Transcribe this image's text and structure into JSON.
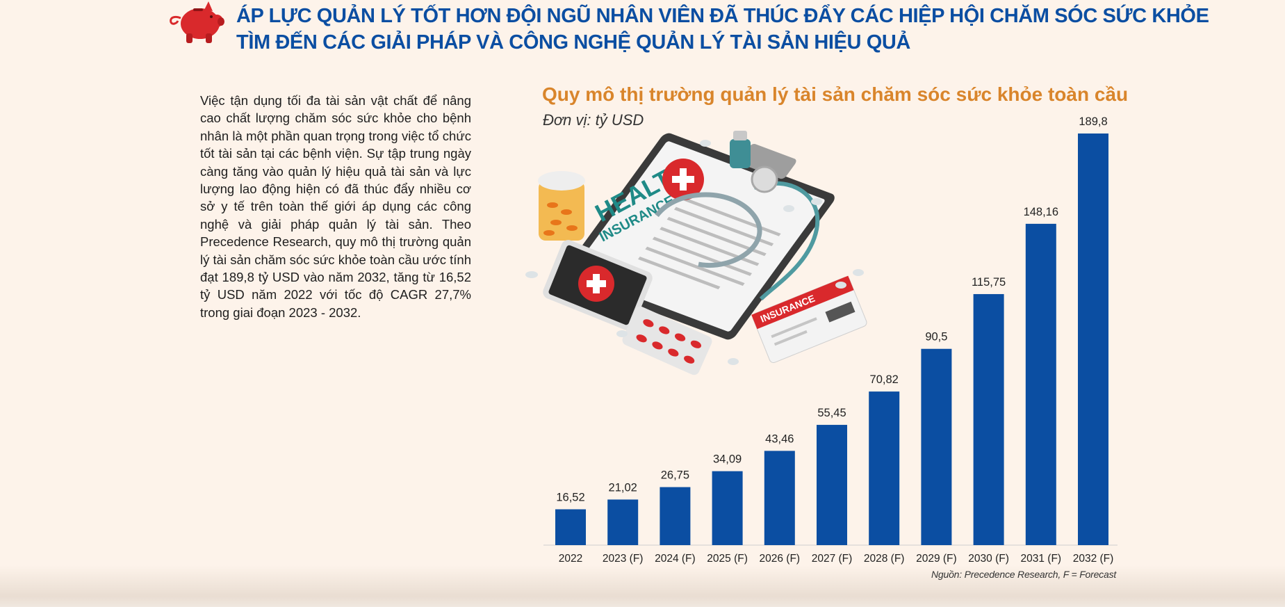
{
  "headline": {
    "line1": "ÁP LỰC QUẢN LÝ TỐT HƠN ĐỘI NGŨ NHÂN VIÊN ĐÃ THÚC ĐẨY CÁC HIỆP HỘI CHĂM SÓC SỨC KHỎE",
    "line2": "TÌM ĐẾN CÁC GIẢI PHÁP VÀ CÔNG NGHỆ QUẢN LÝ TÀI SẢN HIỆU QUẢ"
  },
  "article": {
    "body": "Việc tận dụng tối đa tài sản vật chất để nâng cao chất lượng chăm sóc sức khỏe cho bệnh nhân là một phần quan trọng trong việc tổ chức tốt tài sản tại các bệnh viện. Sự tập trung ngày càng tăng vào quản lý hiệu quả tài sản và lực lượng lao động hiện có đã thúc đẩy nhiều cơ sở y tế trên toàn thế giới áp dụng các công nghệ và giải pháp quản lý tài sản. Theo Precedence Research, quy mô thị trường quản lý tài sản chăm sóc sức khỏe toàn cầu ước tính đạt 189,8 tỷ USD vào năm 2032, tăng từ 16,52 tỷ USD năm 2022 với tốc độ CAGR 27,7% trong giai đoạn 2023 - 2032."
  },
  "illustration": {
    "health_label": "HEALTH",
    "insurance_label": "INSURANCE",
    "card_label": "INSURANCE"
  },
  "colors": {
    "bar": "#0b4ea2",
    "title": "#d9852b",
    "headline": "#0b4ea2",
    "logo": "#d9292c"
  },
  "chart_data": {
    "type": "bar",
    "title": "Quy mô thị trường quản lý tài sản chăm sóc sức khỏe toàn cầu",
    "unit": "Đơn vị: tỷ USD",
    "categories": [
      "2022",
      "2023 (F)",
      "2024 (F)",
      "2025 (F)",
      "2026 (F)",
      "2027 (F)",
      "2028 (F)",
      "2029 (F)",
      "2030 (F)",
      "2031 (F)",
      "2032 (F)"
    ],
    "values": [
      16.52,
      21.02,
      26.75,
      34.09,
      43.46,
      55.45,
      70.82,
      90.5,
      115.75,
      148.16,
      189.8
    ],
    "value_labels": [
      "16,52",
      "21,02",
      "26,75",
      "34,09",
      "43,46",
      "55,45",
      "70,82",
      "90,5",
      "115,75",
      "148,16",
      "189,8"
    ],
    "ylim": [
      0,
      189.8
    ],
    "grid": false,
    "source": "Nguồn: Precedence Research, F = Forecast"
  }
}
